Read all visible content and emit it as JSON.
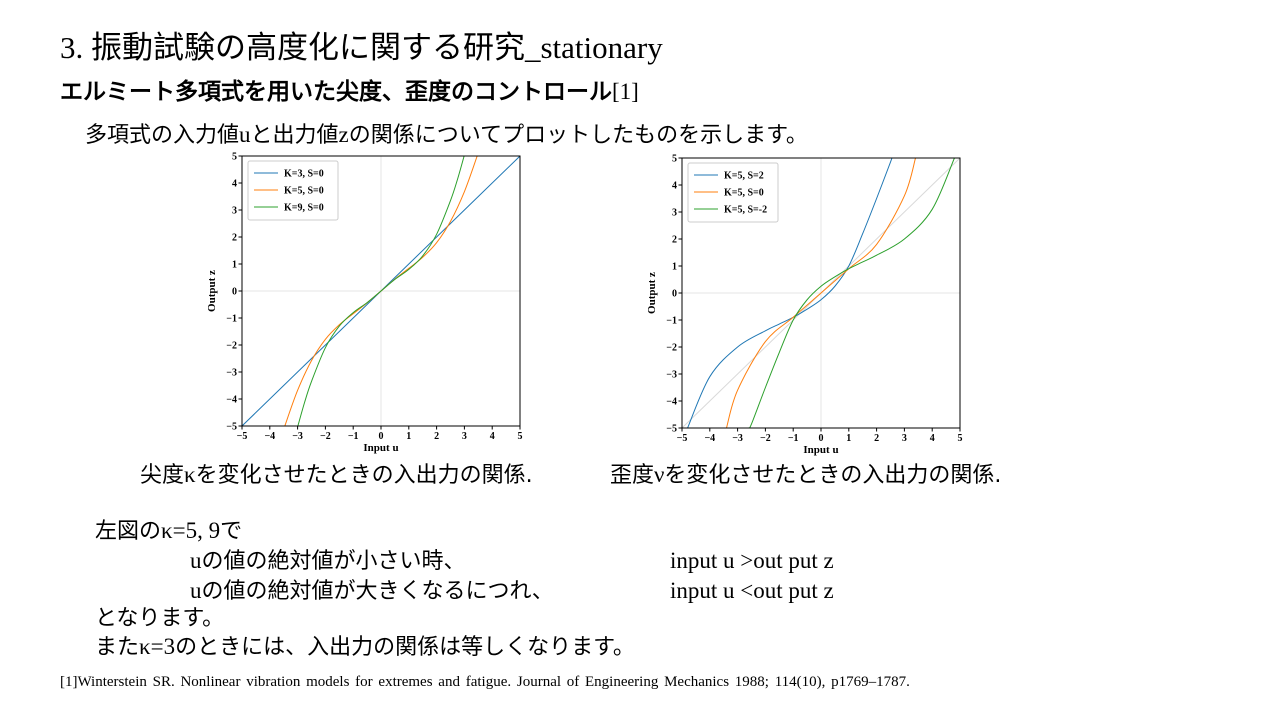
{
  "slide": {
    "title": "3. 振動試験の高度化に関する研究_stationary",
    "subtitle_main": "エルミート多項式を用いた尖度、歪度のコントロール",
    "subtitle_ref": "[1]",
    "intro_a": "多項式の入力値",
    "intro_u": "u",
    "intro_b": "と出力値",
    "intro_z": "z",
    "intro_c": "の関係についてプロットしたものを示します。",
    "caption_left_a": "尖度",
    "caption_left_sym": "κ",
    "caption_left_b": "を変化させたときの入出力の関係.",
    "caption_right_a": "歪度",
    "caption_right_sym": "ν",
    "caption_right_b": "を変化させたときの入出力の関係.",
    "line1_a": "左図の",
    "line1_b": "κ=5, 9",
    "line1_c": "で",
    "line2_u": "u",
    "line2_text": "の値の絶対値が小さい時、",
    "line2_io": "input u >out put z",
    "line3_u": "u",
    "line3_text": "の値の絶対値が大きくなるにつれ、",
    "line3_io": "input u <out put z",
    "line4": "となります。",
    "line5_a": "また",
    "line5_b": "κ=3",
    "line5_c": "のときには、入出力の関係は等しくなります。",
    "footnote": "[1]Winterstein SR. Nonlinear vibration models for extremes and fatigue. Journal of Engineering Mechanics 1988; 114(10), p1769–1787."
  },
  "chart_data": [
    {
      "type": "line",
      "xlabel": "Input u",
      "ylabel": "Output z",
      "xlim": [
        -5,
        5
      ],
      "ylim": [
        -5,
        5
      ],
      "x_ticks": [
        -5,
        -4,
        -3,
        -2,
        -1,
        0,
        1,
        2,
        3,
        4,
        5
      ],
      "y_ticks": [
        -5,
        -4,
        -3,
        -2,
        -1,
        0,
        1,
        2,
        3,
        4,
        5
      ],
      "x_tick_labels": [
        "−5",
        "−4",
        "−3",
        "−2",
        "−1",
        "0",
        "1",
        "2",
        "3",
        "4",
        "5"
      ],
      "y_tick_labels": [
        "−5",
        "−4",
        "−3",
        "−2",
        "−1",
        "0",
        "1",
        "2",
        "3",
        "4",
        "5"
      ],
      "legend_position": "top-left",
      "origin_lines": true,
      "series": [
        {
          "name": "K=3, S=0",
          "color": "#1f77b4",
          "x": [
            -5,
            -2.5,
            0,
            2.5,
            5
          ],
          "y": [
            -5,
            -2.5,
            0,
            2.5,
            5
          ]
        },
        {
          "name": "K=5, S=0",
          "color": "#ff7f0e",
          "x": [
            -3.46,
            -3,
            -2.5,
            -2,
            -1.5,
            -1,
            -0.5,
            0,
            0.5,
            1,
            1.5,
            2,
            2.5,
            3,
            3.46
          ],
          "y": [
            -5,
            -3.68,
            -2.58,
            -1.79,
            -1.25,
            -0.84,
            -0.44,
            0,
            0.44,
            0.84,
            1.25,
            1.79,
            2.58,
            3.68,
            5
          ]
        },
        {
          "name": "K=9, S=0",
          "color": "#2ca02c",
          "x": [
            -2.99,
            -2.75,
            -2.5,
            -2,
            -1.5,
            -1,
            -0.5,
            0,
            0.5,
            1,
            1.5,
            2,
            2.5,
            2.75,
            2.99
          ],
          "y": [
            -5,
            -4.13,
            -3.35,
            -2.1,
            -1.3,
            -0.8,
            -0.43,
            0,
            0.43,
            0.8,
            1.3,
            2.1,
            3.35,
            4.13,
            5
          ]
        }
      ]
    },
    {
      "type": "line",
      "xlabel": "Input u",
      "ylabel": "Output z",
      "xlim": [
        -5,
        5
      ],
      "ylim": [
        -5,
        5
      ],
      "x_ticks": [
        -5,
        -4,
        -3,
        -2,
        -1,
        0,
        1,
        2,
        3,
        4,
        5
      ],
      "y_ticks": [
        -5,
        -4,
        -3,
        -2,
        -1,
        0,
        1,
        2,
        3,
        4,
        5
      ],
      "x_tick_labels": [
        "−5",
        "−4",
        "−3",
        "−2",
        "−1",
        "0",
        "1",
        "2",
        "3",
        "4",
        "5"
      ],
      "y_tick_labels": [
        "−5",
        "−4",
        "−3",
        "−2",
        "−1",
        "0",
        "1",
        "2",
        "3",
        "4",
        "5"
      ],
      "legend_position": "top-left",
      "origin_lines": true,
      "reference_line": {
        "x": [
          -5,
          5
        ],
        "y": [
          -5,
          5
        ],
        "color": "#d9d9d9"
      },
      "series": [
        {
          "name": "K=5, S=2",
          "color": "#1f77b4",
          "x": [
            -4.8,
            -4,
            -3,
            -2,
            -1.5,
            -1,
            -0.5,
            0,
            0.5,
            1,
            1.5,
            2,
            2.5,
            2.55
          ],
          "y": [
            -5,
            -3.1,
            -2.0,
            -1.4,
            -1.15,
            -0.9,
            -0.6,
            -0.25,
            0.25,
            1.0,
            2.2,
            3.5,
            4.85,
            5
          ]
        },
        {
          "name": "K=5, S=0",
          "color": "#ff7f0e",
          "x": [
            -3.4,
            -3,
            -2,
            -1,
            0,
            1,
            2,
            3,
            3.4
          ],
          "y": [
            -5,
            -3.6,
            -1.8,
            -0.9,
            0,
            0.9,
            1.8,
            3.6,
            5
          ]
        },
        {
          "name": "K=5, S=-2",
          "color": "#2ca02c",
          "x": [
            -2.6,
            -2.5,
            -2,
            -1.5,
            -1,
            -0.5,
            0,
            0.5,
            1,
            1.5,
            2,
            3,
            4,
            4.8
          ],
          "y": [
            -5,
            -4.85,
            -3.5,
            -2.2,
            -1.0,
            -0.25,
            0.25,
            0.6,
            0.9,
            1.15,
            1.4,
            2.0,
            3.1,
            5
          ]
        }
      ]
    }
  ]
}
